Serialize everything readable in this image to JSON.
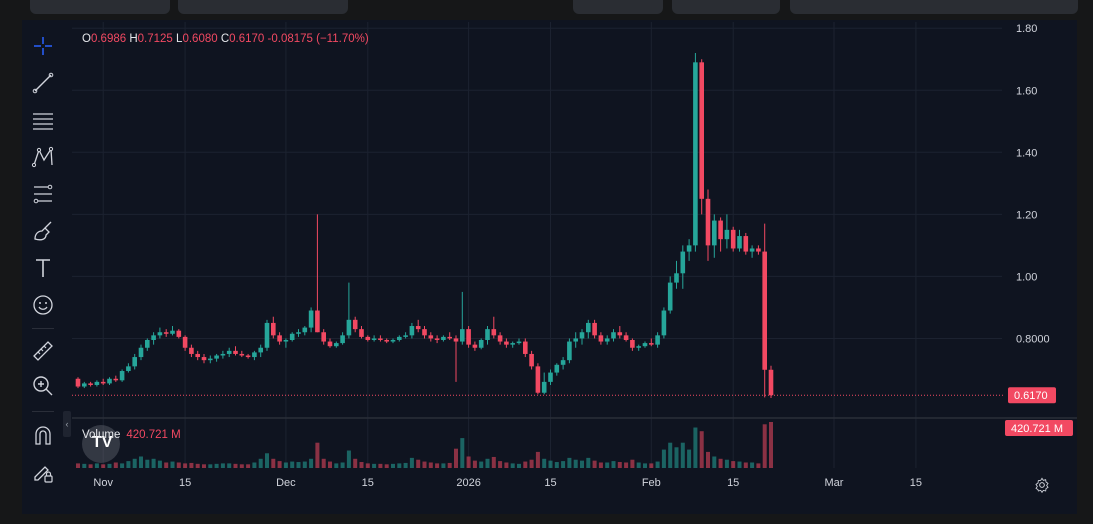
{
  "ohlc": {
    "o_label": "O",
    "o_value": "0.6986",
    "h_label": "H",
    "h_value": "0.7125",
    "l_label": "L",
    "l_value": "0.6080",
    "c_label": "C",
    "c_value": "0.6170",
    "change": "-0.08175 (−11.70%)"
  },
  "volume": {
    "label": "Volume",
    "value": "420.721 M"
  },
  "price_tag": "0.6170",
  "volume_tag": "420.721 M",
  "logo_text": "TV",
  "toolbar": [
    {
      "name": "crosshair-icon"
    },
    {
      "name": "trend-line-icon"
    },
    {
      "name": "horizontal-lines-icon"
    },
    {
      "name": "pattern-icon"
    },
    {
      "name": "fib-retracement-icon"
    },
    {
      "name": "brush-icon"
    },
    {
      "name": "text-icon"
    },
    {
      "name": "emoji-icon"
    },
    {
      "name": "ruler-icon"
    },
    {
      "name": "zoom-in-icon"
    },
    {
      "name": "magnet-icon"
    },
    {
      "name": "lock-pencil-icon"
    }
  ],
  "colors": {
    "up": "#26a69a",
    "down": "#f24962",
    "background": "#0f1420",
    "grid": "#1c2230",
    "text": "#d1d4dc"
  },
  "chart_data": {
    "type": "candlestick",
    "price_axis": {
      "range": [
        0.55,
        1.82
      ],
      "ticks": [
        "1.80",
        "1.60",
        "1.40",
        "1.20",
        "1.00",
        "0.8000"
      ]
    },
    "x_ticks": [
      "Nov",
      "15",
      "Dec",
      "15",
      "2026",
      "15",
      "Feb",
      "15",
      "Mar",
      "15"
    ],
    "x_tick_bar_index": [
      4,
      17,
      33,
      46,
      62,
      75,
      91,
      104,
      120,
      133
    ],
    "last_price": 0.617,
    "grid": true,
    "candles": [
      [
        0.67,
        0.675,
        0.64,
        0.645
      ],
      [
        0.645,
        0.66,
        0.64,
        0.655
      ],
      [
        0.655,
        0.66,
        0.645,
        0.65
      ],
      [
        0.65,
        0.665,
        0.645,
        0.66
      ],
      [
        0.66,
        0.67,
        0.65,
        0.655
      ],
      [
        0.655,
        0.675,
        0.65,
        0.67
      ],
      [
        0.67,
        0.68,
        0.66,
        0.665
      ],
      [
        0.665,
        0.7,
        0.66,
        0.695
      ],
      [
        0.695,
        0.72,
        0.69,
        0.71
      ],
      [
        0.71,
        0.75,
        0.7,
        0.74
      ],
      [
        0.74,
        0.78,
        0.73,
        0.77
      ],
      [
        0.77,
        0.8,
        0.76,
        0.795
      ],
      [
        0.795,
        0.82,
        0.78,
        0.81
      ],
      [
        0.81,
        0.835,
        0.8,
        0.82
      ],
      [
        0.82,
        0.83,
        0.805,
        0.815
      ],
      [
        0.815,
        0.84,
        0.81,
        0.825
      ],
      [
        0.825,
        0.83,
        0.8,
        0.805
      ],
      [
        0.805,
        0.81,
        0.76,
        0.77
      ],
      [
        0.77,
        0.78,
        0.74,
        0.75
      ],
      [
        0.75,
        0.76,
        0.73,
        0.74
      ],
      [
        0.74,
        0.75,
        0.72,
        0.73
      ],
      [
        0.73,
        0.745,
        0.72,
        0.735
      ],
      [
        0.735,
        0.75,
        0.725,
        0.745
      ],
      [
        0.745,
        0.76,
        0.735,
        0.75
      ],
      [
        0.75,
        0.77,
        0.74,
        0.76
      ],
      [
        0.76,
        0.775,
        0.745,
        0.75
      ],
      [
        0.75,
        0.76,
        0.74,
        0.745
      ],
      [
        0.745,
        0.75,
        0.735,
        0.74
      ],
      [
        0.74,
        0.76,
        0.73,
        0.755
      ],
      [
        0.755,
        0.78,
        0.74,
        0.77
      ],
      [
        0.77,
        0.86,
        0.76,
        0.85
      ],
      [
        0.85,
        0.87,
        0.8,
        0.81
      ],
      [
        0.81,
        0.82,
        0.78,
        0.79
      ],
      [
        0.79,
        0.8,
        0.77,
        0.795
      ],
      [
        0.795,
        0.82,
        0.79,
        0.815
      ],
      [
        0.815,
        0.83,
        0.805,
        0.82
      ],
      [
        0.82,
        0.84,
        0.81,
        0.835
      ],
      [
        0.835,
        0.9,
        0.82,
        0.89
      ],
      [
        0.89,
        1.2,
        0.82,
        0.82
      ],
      [
        0.82,
        0.83,
        0.78,
        0.79
      ],
      [
        0.79,
        0.8,
        0.77,
        0.775
      ],
      [
        0.775,
        0.79,
        0.77,
        0.785
      ],
      [
        0.785,
        0.82,
        0.78,
        0.81
      ],
      [
        0.81,
        0.98,
        0.8,
        0.86
      ],
      [
        0.86,
        0.87,
        0.82,
        0.83
      ],
      [
        0.83,
        0.84,
        0.8,
        0.805
      ],
      [
        0.805,
        0.81,
        0.79,
        0.795
      ],
      [
        0.795,
        0.81,
        0.79,
        0.8
      ],
      [
        0.8,
        0.81,
        0.79,
        0.795
      ],
      [
        0.795,
        0.8,
        0.785,
        0.79
      ],
      [
        0.79,
        0.8,
        0.785,
        0.795
      ],
      [
        0.795,
        0.81,
        0.79,
        0.805
      ],
      [
        0.805,
        0.82,
        0.8,
        0.81
      ],
      [
        0.81,
        0.85,
        0.8,
        0.84
      ],
      [
        0.84,
        0.86,
        0.82,
        0.83
      ],
      [
        0.83,
        0.84,
        0.8,
        0.81
      ],
      [
        0.81,
        0.82,
        0.79,
        0.8
      ],
      [
        0.8,
        0.81,
        0.785,
        0.795
      ],
      [
        0.795,
        0.81,
        0.79,
        0.805
      ],
      [
        0.805,
        0.82,
        0.795,
        0.8
      ],
      [
        0.8,
        0.81,
        0.66,
        0.79
      ],
      [
        0.79,
        0.95,
        0.78,
        0.83
      ],
      [
        0.83,
        0.84,
        0.77,
        0.78
      ],
      [
        0.78,
        0.79,
        0.76,
        0.77
      ],
      [
        0.77,
        0.8,
        0.765,
        0.795
      ],
      [
        0.795,
        0.84,
        0.78,
        0.83
      ],
      [
        0.83,
        0.87,
        0.8,
        0.81
      ],
      [
        0.81,
        0.82,
        0.78,
        0.79
      ],
      [
        0.79,
        0.8,
        0.77,
        0.78
      ],
      [
        0.78,
        0.79,
        0.77,
        0.785
      ],
      [
        0.785,
        0.8,
        0.78,
        0.79
      ],
      [
        0.79,
        0.8,
        0.74,
        0.75
      ],
      [
        0.75,
        0.76,
        0.7,
        0.71
      ],
      [
        0.71,
        0.72,
        0.62,
        0.625
      ],
      [
        0.625,
        0.69,
        0.62,
        0.66
      ],
      [
        0.66,
        0.7,
        0.65,
        0.69
      ],
      [
        0.69,
        0.72,
        0.68,
        0.715
      ],
      [
        0.715,
        0.74,
        0.7,
        0.73
      ],
      [
        0.73,
        0.8,
        0.72,
        0.79
      ],
      [
        0.79,
        0.82,
        0.77,
        0.8
      ],
      [
        0.8,
        0.83,
        0.78,
        0.82
      ],
      [
        0.82,
        0.86,
        0.8,
        0.85
      ],
      [
        0.85,
        0.86,
        0.8,
        0.81
      ],
      [
        0.81,
        0.82,
        0.78,
        0.79
      ],
      [
        0.79,
        0.81,
        0.78,
        0.8
      ],
      [
        0.8,
        0.83,
        0.79,
        0.82
      ],
      [
        0.82,
        0.84,
        0.8,
        0.81
      ],
      [
        0.81,
        0.82,
        0.79,
        0.795
      ],
      [
        0.795,
        0.8,
        0.76,
        0.77
      ],
      [
        0.77,
        0.78,
        0.76,
        0.775
      ],
      [
        0.775,
        0.79,
        0.77,
        0.785
      ],
      [
        0.785,
        0.8,
        0.775,
        0.78
      ],
      [
        0.78,
        0.82,
        0.77,
        0.81
      ],
      [
        0.81,
        0.9,
        0.8,
        0.89
      ],
      [
        0.89,
        1.0,
        0.88,
        0.98
      ],
      [
        0.98,
        1.05,
        0.96,
        1.01
      ],
      [
        1.01,
        1.1,
        0.96,
        1.08
      ],
      [
        1.08,
        1.12,
        1.05,
        1.1
      ],
      [
        1.1,
        1.72,
        1.08,
        1.69
      ],
      [
        1.69,
        1.7,
        1.2,
        1.25
      ],
      [
        1.25,
        1.28,
        1.05,
        1.1
      ],
      [
        1.1,
        1.2,
        1.06,
        1.18
      ],
      [
        1.18,
        1.19,
        1.08,
        1.12
      ],
      [
        1.12,
        1.2,
        1.09,
        1.15
      ],
      [
        1.15,
        1.16,
        1.08,
        1.09
      ],
      [
        1.09,
        1.15,
        1.08,
        1.13
      ],
      [
        1.13,
        1.14,
        1.07,
        1.08
      ],
      [
        1.08,
        1.1,
        1.06,
        1.09
      ],
      [
        1.09,
        1.1,
        1.07,
        1.08
      ],
      [
        1.08,
        1.17,
        0.61,
        0.699
      ],
      [
        0.699,
        0.712,
        0.608,
        0.617
      ]
    ],
    "volume_relative": [
      0.1,
      0.09,
      0.08,
      0.1,
      0.08,
      0.09,
      0.12,
      0.1,
      0.15,
      0.2,
      0.25,
      0.18,
      0.2,
      0.16,
      0.12,
      0.14,
      0.12,
      0.1,
      0.11,
      0.09,
      0.08,
      0.08,
      0.09,
      0.1,
      0.1,
      0.09,
      0.08,
      0.08,
      0.12,
      0.2,
      0.32,
      0.2,
      0.15,
      0.12,
      0.14,
      0.13,
      0.14,
      0.2,
      0.55,
      0.2,
      0.14,
      0.1,
      0.12,
      0.38,
      0.2,
      0.13,
      0.1,
      0.09,
      0.09,
      0.08,
      0.09,
      0.1,
      0.11,
      0.22,
      0.18,
      0.14,
      0.12,
      0.1,
      0.1,
      0.11,
      0.42,
      0.65,
      0.25,
      0.16,
      0.14,
      0.2,
      0.24,
      0.15,
      0.12,
      0.1,
      0.09,
      0.14,
      0.18,
      0.35,
      0.2,
      0.16,
      0.13,
      0.15,
      0.22,
      0.18,
      0.16,
      0.22,
      0.16,
      0.12,
      0.12,
      0.15,
      0.13,
      0.12,
      0.18,
      0.12,
      0.1,
      0.1,
      0.14,
      0.4,
      0.55,
      0.45,
      0.55,
      0.4,
      0.88,
      0.8,
      0.35,
      0.25,
      0.2,
      0.18,
      0.15,
      0.14,
      0.12,
      0.12,
      0.1,
      0.95,
      1.0
    ]
  }
}
